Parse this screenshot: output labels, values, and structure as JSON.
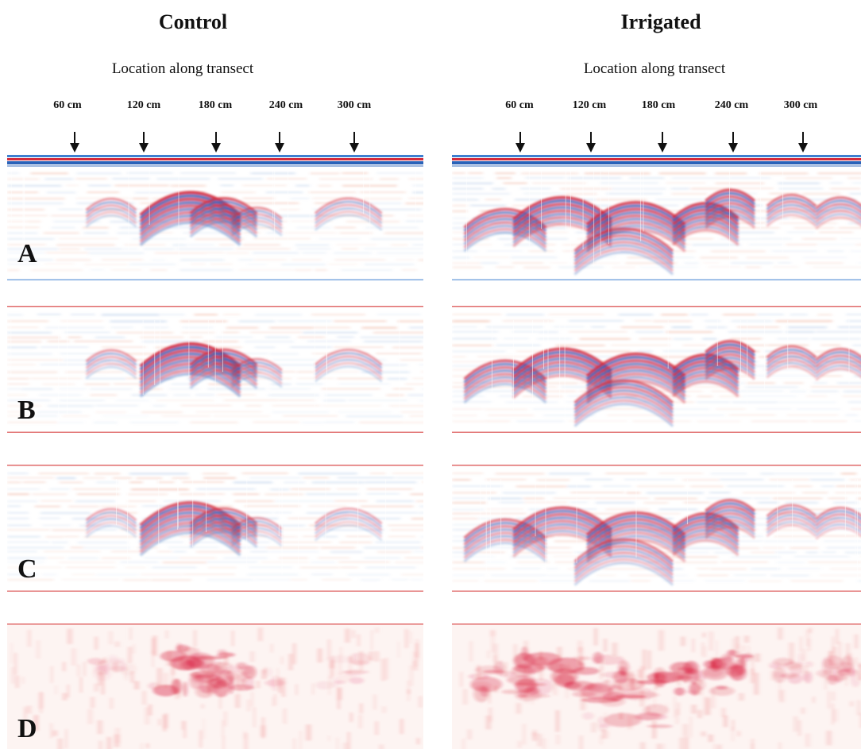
{
  "columns": [
    {
      "title": "Control",
      "axis_label": "Location along transect",
      "ticks": [
        "60 cm",
        "120 cm",
        "180 cm",
        "240 cm",
        "300 cm"
      ]
    },
    {
      "title": "Irrigated",
      "axis_label": "Location along transect",
      "ticks": [
        "60 cm",
        "120 cm",
        "180 cm",
        "240 cm",
        "300 cm"
      ]
    }
  ],
  "rows": [
    "A",
    "B",
    "C",
    "D"
  ],
  "colors": {
    "positive": "#d42a3a",
    "negative": "#2a62b8",
    "energy": "#d81e3c",
    "top_line": "#3d7fd0",
    "frame_line": "#e06a6a",
    "text": "#111111"
  }
}
